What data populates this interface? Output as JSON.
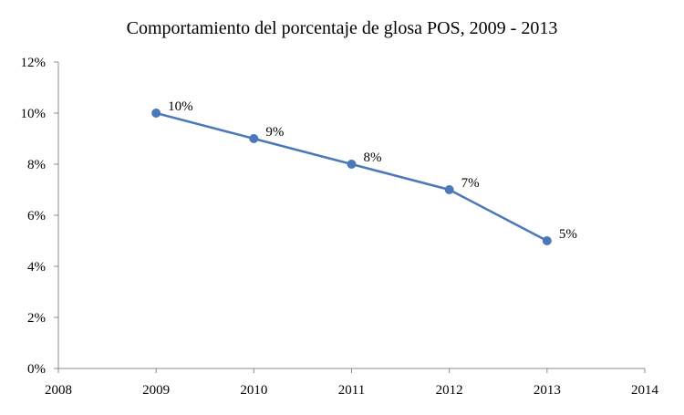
{
  "chart_data": {
    "type": "line",
    "title": "Comportamiento del porcentaje de glosa POS, 2009 - 2013",
    "xlabel": "",
    "ylabel": "",
    "x": [
      2009,
      2010,
      2011,
      2012,
      2013
    ],
    "series": [
      {
        "values": [
          10,
          9,
          8,
          7,
          5
        ],
        "data_labels": [
          "10%",
          "9%",
          "8%",
          "7%",
          "5%"
        ],
        "color": "#4a78b8"
      }
    ],
    "xlim": [
      2008,
      2014
    ],
    "ylim": [
      0,
      12
    ],
    "x_ticks": [
      2008,
      2009,
      2010,
      2011,
      2012,
      2013,
      2014
    ],
    "x_tick_labels": [
      "2008",
      "2009",
      "2010",
      "2011",
      "2012",
      "2013",
      "2014"
    ],
    "y_ticks": [
      0,
      2,
      4,
      6,
      8,
      10,
      12
    ],
    "y_tick_labels": [
      "0%",
      "2%",
      "4%",
      "6%",
      "8%",
      "10%",
      "12%"
    ],
    "grid": false,
    "legend": "none",
    "marker": "circle"
  }
}
